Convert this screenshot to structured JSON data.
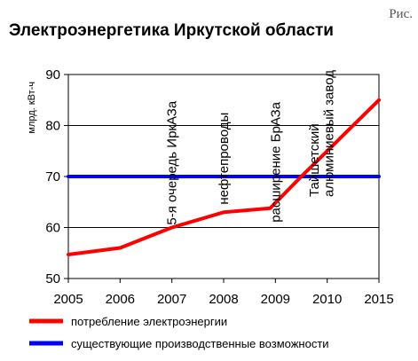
{
  "corner_label": "Рис.",
  "chart_data": {
    "type": "line",
    "title": "Электроэнергетика Иркутской области",
    "ylabel": "млрд. кВт-ч",
    "xlabel": "",
    "x": [
      2005,
      2006,
      2007,
      2008,
      2009,
      2010,
      2015
    ],
    "ylim": [
      50,
      90
    ],
    "yticks": [
      50,
      60,
      70,
      80,
      90
    ],
    "grid": {
      "horizontal": true,
      "vertical": false
    },
    "legend_position": "bottom",
    "series": [
      {
        "name": "потребление электроэнергии",
        "color": "#ff0000",
        "points": [
          {
            "x": 2005,
            "y": 54.7
          },
          {
            "x": 2006,
            "y": 56.0
          },
          {
            "x": 2007,
            "y": 60.0
          },
          {
            "x": 2008,
            "y": 63.0
          },
          {
            "x": 2008.9,
            "y": 63.8
          },
          {
            "x": 2009.5,
            "y": 70.0
          },
          {
            "x": 2015,
            "y": 85.0
          }
        ]
      },
      {
        "name": "существующие производственные возможности",
        "color": "#0000ff",
        "points": [
          {
            "x": 2005,
            "y": 70.0
          },
          {
            "x": 2015,
            "y": 70.0
          }
        ]
      }
    ],
    "annotations": [
      {
        "text": "5-я очередь ИркАЗа",
        "x": 2007,
        "position": "vertical",
        "anchor_y": 60.5
      },
      {
        "text": "нефтепроводы",
        "x": 2008,
        "position": "vertical",
        "anchor_y": 64.5
      },
      {
        "text": "расширение БрАЗа",
        "x": 2009,
        "position": "vertical",
        "anchor_y": 61.0
      },
      {
        "text": "Тайшетский",
        "x": 2009.75,
        "position": "vertical",
        "anchor_y": 66.0
      },
      {
        "text": "алюминиевый завод",
        "x": 2010.15,
        "position": "vertical",
        "anchor_y": 66.0
      }
    ]
  }
}
